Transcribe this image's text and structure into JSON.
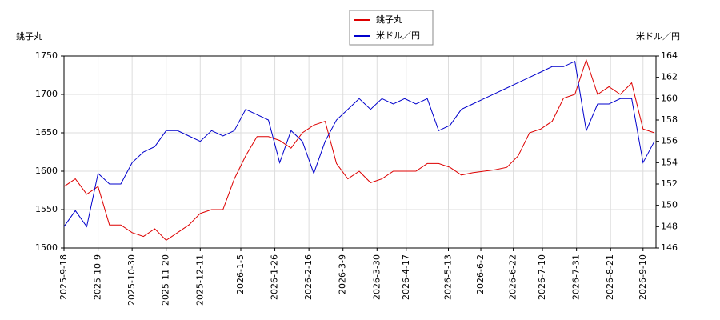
{
  "chart_data": {
    "type": "line",
    "y_label": "銚子丸",
    "y2_label": "米ドル／円",
    "x": [
      "2025-9-18",
      "2025-9-25",
      "2025-10-2",
      "2025-10-9",
      "2025-10-16",
      "2025-10-23",
      "2025-10-30",
      "2025-11-6",
      "2025-11-13",
      "2025-11-20",
      "2025-11-27",
      "2025-12-4",
      "2025-12-11",
      "2025-12-18",
      "2025-12-25",
      "2026-1-1",
      "2026-1-8",
      "2026-1-15",
      "2026-1-22",
      "2026-1-29",
      "2026-2-5",
      "2026-2-12",
      "2026-2-19",
      "2026-2-26",
      "2026-3-5",
      "2026-3-12",
      "2026-3-19",
      "2026-3-26",
      "2026-4-2",
      "2026-4-9",
      "2026-4-16",
      "2026-4-23",
      "2026-4-30",
      "2026-5-7",
      "2026-5-14",
      "2026-5-21",
      "2026-5-28",
      "2026-6-4",
      "2026-6-11",
      "2026-6-18",
      "2026-6-25",
      "2026-7-2",
      "2026-7-9",
      "2026-7-16",
      "2026-7-23",
      "2026-7-30",
      "2026-8-6",
      "2026-8-13",
      "2026-8-20",
      "2026-8-27",
      "2026-9-3",
      "2026-9-10",
      "2026-9-17"
    ],
    "series": [
      {
        "name": "銚子丸",
        "color": "#dd0000",
        "values": [
          1580,
          1590,
          1570,
          1580,
          1530,
          1530,
          1520,
          1515,
          1525,
          1510,
          1520,
          1530,
          1545,
          1550,
          1550,
          1590,
          1620,
          1645,
          1645,
          1640,
          1630,
          1650,
          1660,
          1665,
          1610,
          1590,
          1600,
          1585,
          1590,
          1600,
          1600,
          1600,
          1610,
          1610,
          1605,
          1595,
          1598,
          1600,
          1602,
          1605,
          1620,
          1650,
          1655,
          1665,
          1695,
          1700,
          1745,
          1700,
          1710,
          1700,
          1715,
          1655,
          1650
        ]
      },
      {
        "name": "米ドル／円",
        "color": "#0000cc",
        "axis": "y2",
        "values": [
          148,
          149.5,
          148,
          153,
          152,
          152,
          154,
          155,
          155.5,
          157,
          157,
          156.5,
          156,
          157,
          156.5,
          157,
          159,
          158.5,
          158,
          154,
          157,
          156,
          153,
          156,
          158,
          159,
          160,
          159,
          160,
          159.5,
          160,
          159.5,
          160,
          157,
          157.5,
          159,
          159.5,
          160,
          160.5,
          161,
          161.5,
          162,
          162.5,
          163,
          163,
          163.5,
          157,
          159.5,
          159.5,
          160,
          160,
          154,
          156
        ]
      }
    ],
    "xlim": [
      "2025-9-18",
      "2026-9-18"
    ],
    "xticks": [
      "2025-9-18",
      "2025-10-9",
      "2025-10-30",
      "2025-11-20",
      "2025-12-11",
      "2026-1-5",
      "2026-1-26",
      "2026-2-16",
      "2026-3-9",
      "2026-3-30",
      "2026-4-17",
      "2026-5-13",
      "2026-6-2",
      "2026-6-22",
      "2026-7-10",
      "2026-7-31",
      "2026-8-21",
      "2026-9-10"
    ],
    "ylim": [
      1500,
      1750
    ],
    "yticks": [
      1500,
      1550,
      1600,
      1650,
      1700,
      1750
    ],
    "y2lim": [
      146,
      164
    ],
    "y2ticks": [
      146,
      148,
      150,
      152,
      154,
      156,
      158,
      160,
      162,
      164
    ],
    "grid": true
  }
}
